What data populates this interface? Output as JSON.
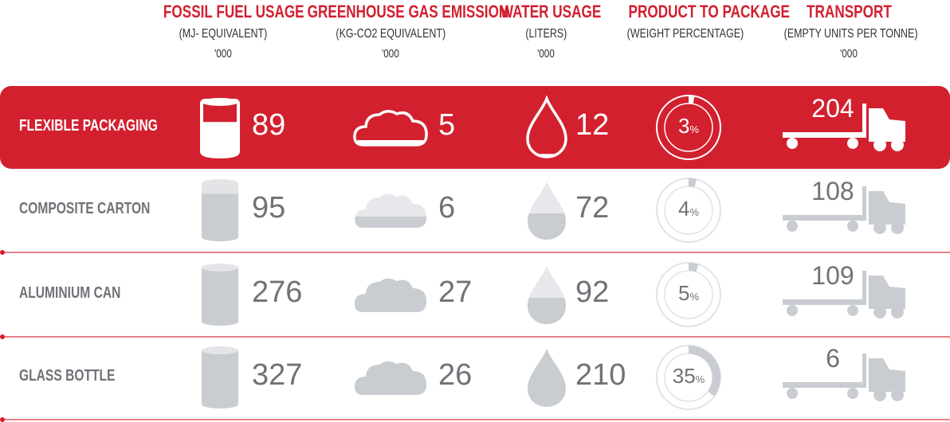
{
  "colors": {
    "accent": "#d3202f",
    "header_red": "#d22030",
    "grey_icon": "#c9ccd0",
    "grey_text": "#6f7277",
    "white": "#ffffff"
  },
  "columns": [
    {
      "title": "FOSSIL FUEL USAGE",
      "subtitle": "(MJ- EQUIVALENT)",
      "unit": "'000",
      "icon": "cylinder-icon"
    },
    {
      "title": "GREENHOUSE GAS EMISSION",
      "subtitle": "(KG-CO2 EQUIVALENT)",
      "unit": "'000",
      "icon": "cloud-icon"
    },
    {
      "title": "WATER USAGE",
      "subtitle": "(LITERS)",
      "unit": "'000",
      "icon": "water-drop-icon"
    },
    {
      "title": "PRODUCT TO PACKAGE",
      "subtitle": "(WEIGHT PERCENTAGE)",
      "unit": "",
      "icon": "donut-icon"
    },
    {
      "title": "TRANSPORT",
      "subtitle": "(EMPTY UNITS PER TONNE)",
      "unit": "'000",
      "icon": "truck-icon"
    }
  ],
  "chart_data": {
    "type": "table",
    "title": "",
    "categories": [
      "FLEXIBLE PACKAGING",
      "COMPOSITE CARTON",
      "ALUMINIUM CAN",
      "GLASS BOTTLE"
    ],
    "series": [
      {
        "name": "FOSSIL FUEL USAGE",
        "values": [
          89,
          95,
          276,
          327
        ]
      },
      {
        "name": "GREENHOUSE GAS EMISSION",
        "values": [
          5,
          6,
          27,
          26
        ]
      },
      {
        "name": "WATER USAGE",
        "values": [
          12,
          72,
          92,
          210
        ]
      },
      {
        "name": "PRODUCT TO PACKAGE",
        "values": [
          3,
          4,
          5,
          35
        ]
      },
      {
        "name": "TRANSPORT",
        "values": [
          204,
          108,
          109,
          6
        ]
      }
    ],
    "highlighted_row": "FLEXIBLE PACKAGING",
    "water_fill_fraction": [
      0.05,
      0.45,
      0.45,
      1.0
    ],
    "cylinder_fill_fraction": [
      0.6,
      0.8,
      1.0,
      1.0
    ],
    "cloud_fill_fraction": [
      0.3,
      0.4,
      1.0,
      1.0
    ]
  },
  "rows": [
    {
      "label": "FLEXIBLE PACKAGING",
      "fossil": "89",
      "ghg": "5",
      "water": "12",
      "package": "3",
      "package_unit": "%",
      "transport": "204"
    },
    {
      "label": "COMPOSITE CARTON",
      "fossil": "95",
      "ghg": "6",
      "water": "72",
      "package": "4",
      "package_unit": "%",
      "transport": "108"
    },
    {
      "label": "ALUMINIUM CAN",
      "fossil": "276",
      "ghg": "27",
      "water": "92",
      "package": "5",
      "package_unit": "%",
      "transport": "109"
    },
    {
      "label": "GLASS BOTTLE",
      "fossil": "327",
      "ghg": "26",
      "water": "210",
      "package": "35",
      "package_unit": "%",
      "transport": "6"
    }
  ]
}
